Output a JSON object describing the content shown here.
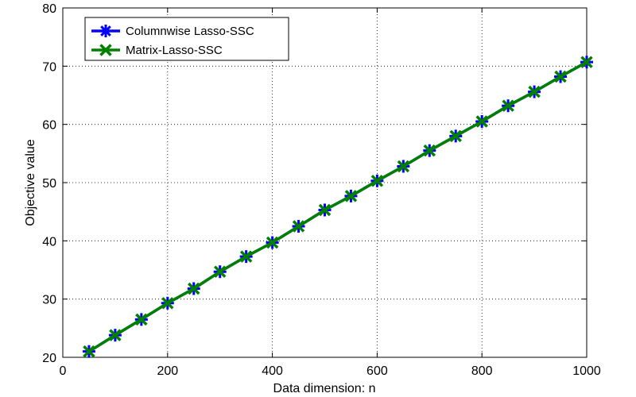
{
  "chart_data": {
    "type": "line",
    "xlabel": "Data dimension: n",
    "ylabel": "Objective value",
    "xlim": [
      0,
      1000
    ],
    "ylim": [
      20,
      80
    ],
    "xticks": [
      "0",
      "200",
      "400",
      "600",
      "800",
      "1000"
    ],
    "yticks": [
      "20",
      "30",
      "40",
      "50",
      "60",
      "70",
      "80"
    ],
    "grid": true,
    "legend_position": "top-left",
    "x": [
      50,
      100,
      150,
      200,
      250,
      300,
      350,
      400,
      450,
      500,
      550,
      600,
      650,
      700,
      750,
      800,
      850,
      900,
      950,
      1000
    ],
    "series": [
      {
        "name": "Columnwise Lasso-SSC",
        "color": "#0000ff",
        "marker": "asterisk",
        "values": [
          21.0,
          23.8,
          26.5,
          29.3,
          31.8,
          34.7,
          37.3,
          39.7,
          42.5,
          45.3,
          47.7,
          50.3,
          52.8,
          55.5,
          58.0,
          60.5,
          63.2,
          65.6,
          68.2,
          70.7
        ]
      },
      {
        "name": "Matrix-Lasso-SSC",
        "color": "#008000",
        "marker": "x",
        "values": [
          21.0,
          23.8,
          26.5,
          29.3,
          31.8,
          34.7,
          37.3,
          39.7,
          42.5,
          45.3,
          47.7,
          50.3,
          52.8,
          55.5,
          58.0,
          60.5,
          63.2,
          65.6,
          68.2,
          70.7
        ]
      }
    ]
  }
}
